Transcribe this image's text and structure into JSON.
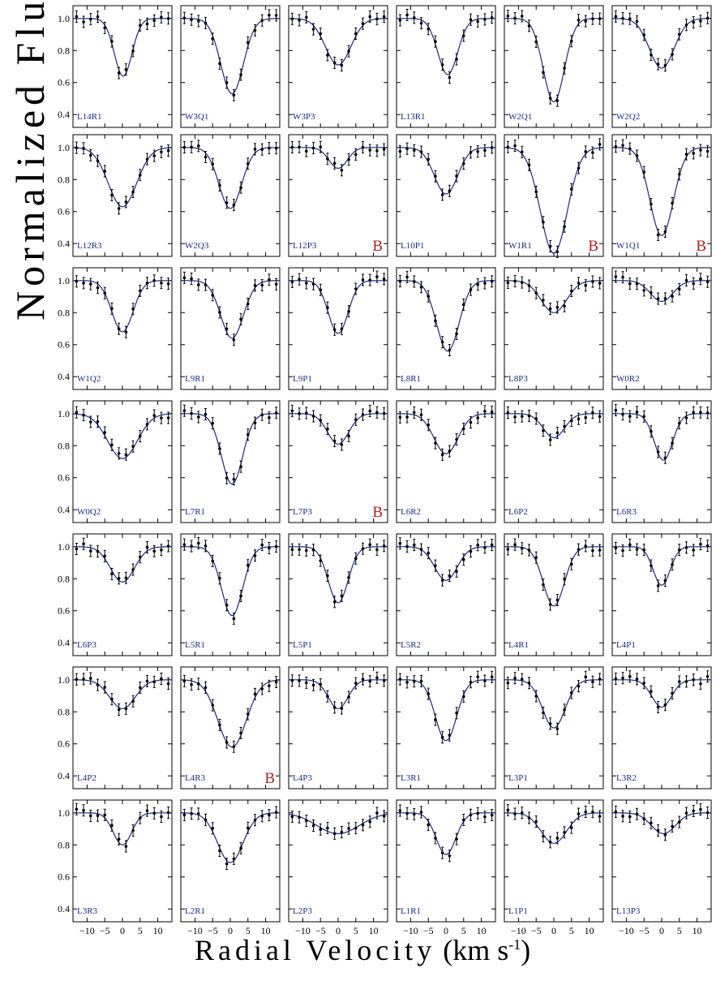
{
  "figure": {
    "ylabel": "Normalized Flux",
    "xlabel_text": "Radial Velocity",
    "xlabel_unit_pre": "(km s",
    "xlabel_unit_sup": "-1",
    "xlabel_unit_post": ")"
  },
  "chart_data": {
    "type": "line",
    "layout": "small multiples, 7 rows x 6 columns, shared axes",
    "xlabel": "Radial Velocity (km s-1)",
    "ylabel": "Normalized Flux",
    "xlim": [
      -14,
      14
    ],
    "ylim": [
      0.32,
      1.08
    ],
    "xticks": [
      -10,
      -5,
      0,
      5,
      10
    ],
    "xtick_labels": [
      "−10",
      "−5",
      "0",
      "5",
      "10"
    ],
    "yticks": [
      0.4,
      0.6,
      0.8,
      1.0
    ],
    "ytick_labels": [
      "0.4",
      "0.6",
      "0.8",
      "1.0"
    ],
    "x_sample_points": [
      -13,
      -11,
      -9,
      -7,
      -5,
      -3,
      -1,
      1,
      3,
      5,
      7,
      9,
      11,
      13
    ],
    "colors": {
      "fit_line": "#1a2a8c",
      "points": "#000000",
      "panel_label": "#1a2a8c",
      "badge": "#b22222"
    },
    "panels": [
      {
        "label": "L14R1",
        "center": 0.2,
        "depth": 0.36,
        "sigma": 2.5,
        "badge": ""
      },
      {
        "label": "W3Q1",
        "center": 0.5,
        "depth": 0.47,
        "sigma": 3.2,
        "badge": ""
      },
      {
        "label": "W3P3",
        "center": 0.0,
        "depth": 0.29,
        "sigma": 3.6,
        "badge": ""
      },
      {
        "label": "L13R1",
        "center": 0.5,
        "depth": 0.35,
        "sigma": 2.8,
        "badge": ""
      },
      {
        "label": "W2Q1",
        "center": 0.0,
        "depth": 0.52,
        "sigma": 3.0,
        "badge": ""
      },
      {
        "label": "W2Q2",
        "center": 0.0,
        "depth": 0.31,
        "sigma": 3.5,
        "badge": ""
      },
      {
        "label": "L12R3",
        "center": 0.0,
        "depth": 0.37,
        "sigma": 4.0,
        "badge": ""
      },
      {
        "label": "W2Q3",
        "center": 0.0,
        "depth": 0.38,
        "sigma": 3.2,
        "badge": ""
      },
      {
        "label": "L12P3",
        "center": 0.0,
        "depth": 0.13,
        "sigma": 2.6,
        "badge": "B"
      },
      {
        "label": "L10P1",
        "center": 0.0,
        "depth": 0.29,
        "sigma": 3.3,
        "badge": ""
      },
      {
        "label": "W1R1",
        "center": 0.0,
        "depth": 0.66,
        "sigma": 3.8,
        "badge": "B"
      },
      {
        "label": "W1Q1",
        "center": 0.0,
        "depth": 0.55,
        "sigma": 3.3,
        "badge": "B"
      },
      {
        "label": "W1Q2",
        "center": 0.0,
        "depth": 0.32,
        "sigma": 3.0,
        "badge": ""
      },
      {
        "label": "L9R1",
        "center": 0.5,
        "depth": 0.36,
        "sigma": 3.2,
        "badge": ""
      },
      {
        "label": "L9P1",
        "center": 0.0,
        "depth": 0.33,
        "sigma": 2.8,
        "badge": ""
      },
      {
        "label": "L8R1",
        "center": 0.5,
        "depth": 0.44,
        "sigma": 3.2,
        "badge": ""
      },
      {
        "label": "L8P3",
        "center": 0.0,
        "depth": 0.2,
        "sigma": 3.6,
        "badge": ""
      },
      {
        "label": "W0R2",
        "center": 0.0,
        "depth": 0.13,
        "sigma": 3.2,
        "badge": ""
      },
      {
        "label": "W0Q2",
        "center": 0.0,
        "depth": 0.28,
        "sigma": 4.2,
        "badge": ""
      },
      {
        "label": "L7R1",
        "center": 0.5,
        "depth": 0.44,
        "sigma": 3.0,
        "badge": ""
      },
      {
        "label": "L7P3",
        "center": 0.0,
        "depth": 0.19,
        "sigma": 3.0,
        "badge": "B"
      },
      {
        "label": "L6R2",
        "center": 0.0,
        "depth": 0.25,
        "sigma": 3.4,
        "badge": ""
      },
      {
        "label": "L6P2",
        "center": 0.0,
        "depth": 0.15,
        "sigma": 3.0,
        "badge": ""
      },
      {
        "label": "L6R3",
        "center": 0.5,
        "depth": 0.29,
        "sigma": 2.6,
        "badge": ""
      },
      {
        "label": "L6P3",
        "center": 0.0,
        "depth": 0.22,
        "sigma": 3.4,
        "badge": ""
      },
      {
        "label": "L5R1",
        "center": 0.5,
        "depth": 0.43,
        "sigma": 3.0,
        "badge": ""
      },
      {
        "label": "L5P1",
        "center": 0.0,
        "depth": 0.35,
        "sigma": 2.8,
        "badge": ""
      },
      {
        "label": "L5R2",
        "center": 0.0,
        "depth": 0.21,
        "sigma": 3.2,
        "badge": ""
      },
      {
        "label": "L4R1",
        "center": 0.0,
        "depth": 0.37,
        "sigma": 3.0,
        "badge": ""
      },
      {
        "label": "L4P1",
        "center": 0.0,
        "depth": 0.24,
        "sigma": 2.4,
        "badge": ""
      },
      {
        "label": "L4P2",
        "center": 0.0,
        "depth": 0.18,
        "sigma": 3.6,
        "badge": ""
      },
      {
        "label": "L4R3",
        "center": 0.5,
        "depth": 0.42,
        "sigma": 4.0,
        "badge": "B"
      },
      {
        "label": "L4P3",
        "center": 0.0,
        "depth": 0.18,
        "sigma": 2.8,
        "badge": ""
      },
      {
        "label": "L3R1",
        "center": 0.0,
        "depth": 0.38,
        "sigma": 3.0,
        "badge": ""
      },
      {
        "label": "L3P1",
        "center": 0.0,
        "depth": 0.3,
        "sigma": 3.2,
        "badge": ""
      },
      {
        "label": "L3R2",
        "center": 0.0,
        "depth": 0.17,
        "sigma": 2.8,
        "badge": ""
      },
      {
        "label": "L3R3",
        "center": 0.0,
        "depth": 0.2,
        "sigma": 2.6,
        "badge": ""
      },
      {
        "label": "L2R1",
        "center": 0.0,
        "depth": 0.31,
        "sigma": 3.6,
        "badge": ""
      },
      {
        "label": "L2P3",
        "center": 0.0,
        "depth": 0.13,
        "sigma": 6.0,
        "badge": ""
      },
      {
        "label": "L1R1",
        "center": 0.0,
        "depth": 0.26,
        "sigma": 2.8,
        "badge": ""
      },
      {
        "label": "L1P1",
        "center": 0.0,
        "depth": 0.19,
        "sigma": 3.6,
        "badge": ""
      },
      {
        "label": "L13P3",
        "center": 0.5,
        "depth": 0.13,
        "sigma": 3.4,
        "badge": ""
      }
    ]
  }
}
